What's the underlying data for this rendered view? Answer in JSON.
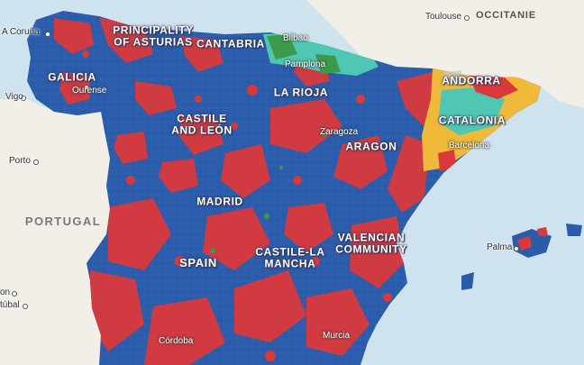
{
  "colors": {
    "sea": "#cfe3ee",
    "land": "#f2efe9",
    "red": "#d9393b",
    "blue": "#2a5caa",
    "teal": "#4fc7b3",
    "green": "#3c9a4b",
    "yellow": "#f0b93a",
    "grey": "#c9c9c9"
  },
  "regions": [
    {
      "id": "galicia",
      "label": "GALICIA"
    },
    {
      "id": "asturias",
      "label": "PRINCIPALITY OF ASTURIAS"
    },
    {
      "id": "cantabria",
      "label": "CANTABRIA"
    },
    {
      "id": "larioja",
      "label": "LA RIOJA"
    },
    {
      "id": "castileleon",
      "label": "CASTILE AND LEÓN"
    },
    {
      "id": "aragon",
      "label": "ARAGON"
    },
    {
      "id": "catalonia",
      "label": "CATALONIA"
    },
    {
      "id": "andorra",
      "label": "ANDORRA"
    },
    {
      "id": "madrid",
      "label": "MADRID"
    },
    {
      "id": "castilelamancha",
      "label": "CASTILE-LA MANCHA"
    },
    {
      "id": "valencian",
      "label": "VALENCIAN COMMUNITY"
    },
    {
      "id": "spain",
      "label": "SPAIN"
    }
  ],
  "countries": {
    "portugal": "PORTUGAL",
    "occitanie": "OCCITANIE"
  },
  "cities": {
    "acoruna": "A Coruña",
    "vigo": "Vigo",
    "ourense": "Ourense",
    "porto": "Porto",
    "bilbao": "Bilbao",
    "pamplona": "Pamplona",
    "zaragoza": "Zaragoza",
    "barcelona": "Barcelona",
    "toulouse": "Toulouse",
    "palma": "Palma",
    "cordoba": "Córdoba",
    "murcia": "Murcia",
    "lisbon_partial": "on",
    "setubal_partial": "túbal"
  }
}
